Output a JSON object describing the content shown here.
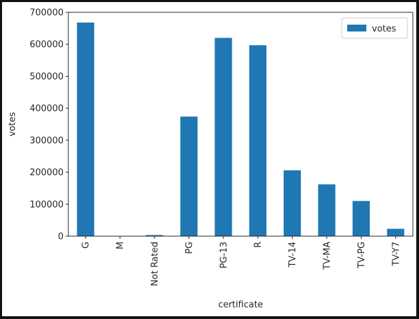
{
  "chart_data": {
    "type": "bar",
    "categories": [
      "G",
      "M",
      "Not Rated",
      "PG",
      "PG-13",
      "R",
      "TV-14",
      "TV-MA",
      "TV-PG",
      "TV-Y7"
    ],
    "series": [
      {
        "name": "votes",
        "values": [
          668000,
          500,
          3500,
          374000,
          620000,
          597000,
          206000,
          162000,
          110000,
          23000
        ]
      }
    ],
    "xlabel": "certificate",
    "ylabel": "votes",
    "ylim": [
      0,
      700000
    ],
    "yticks": [
      0,
      100000,
      200000,
      300000,
      400000,
      500000,
      600000,
      700000
    ],
    "ytick_labels": [
      "0",
      "100000",
      "200000",
      "300000",
      "400000",
      "500000",
      "600000",
      "700000"
    ],
    "legend_placement": "top-right",
    "grid": false,
    "bar_color": "#1f77b4"
  }
}
